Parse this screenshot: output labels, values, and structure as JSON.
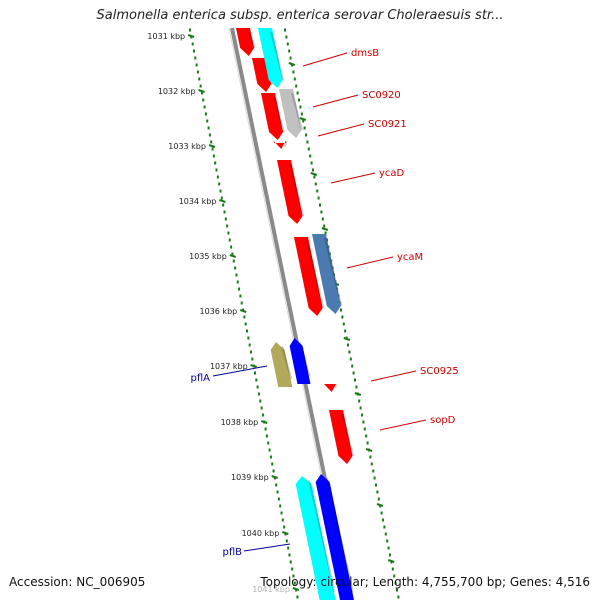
{
  "title": "Salmonella enterica subsp. enterica serovar Choleraesuis str...",
  "footer": {
    "accession": "Accession: NC_006905",
    "summary": "Topology: circular; Length: 4,755,700 bp; Genes: 4,516"
  },
  "colors": {
    "tick_dots": "#1a7a1a",
    "backbone": "#8a8a8a",
    "forward_gene_label": "#cc0000",
    "reverse_gene_label": "#000099",
    "cds_red": "#ff0000",
    "cds_cyan": "#00ffff",
    "cds_blue": "#0000ff",
    "cds_grey": "#c0c0c0",
    "cds_steel": "#4a7ab0",
    "cds_olive": "#b3a95a"
  },
  "ticks": [
    {
      "label": "1031 kbp"
    },
    {
      "label": "1032 kbp"
    },
    {
      "label": "1033 kbp"
    },
    {
      "label": "1034 kbp"
    },
    {
      "label": "1035 kbp"
    },
    {
      "label": "1036 kbp"
    },
    {
      "label": "1037 kbp"
    },
    {
      "label": "1038 kbp"
    },
    {
      "label": "1039 kbp"
    },
    {
      "label": "1040 kbp"
    },
    {
      "label": "1041 kbp"
    }
  ],
  "genes": [
    {
      "name": "dmsB",
      "strand": "forward"
    },
    {
      "name": "SC0920",
      "strand": "forward"
    },
    {
      "name": "SC0921",
      "strand": "forward"
    },
    {
      "name": "ycaD",
      "strand": "forward"
    },
    {
      "name": "ycaM",
      "strand": "forward"
    },
    {
      "name": "SC0925",
      "strand": "forward"
    },
    {
      "name": "sopD",
      "strand": "forward"
    },
    {
      "name": "pflA",
      "strand": "reverse"
    },
    {
      "name": "pflB",
      "strand": "reverse"
    }
  ]
}
